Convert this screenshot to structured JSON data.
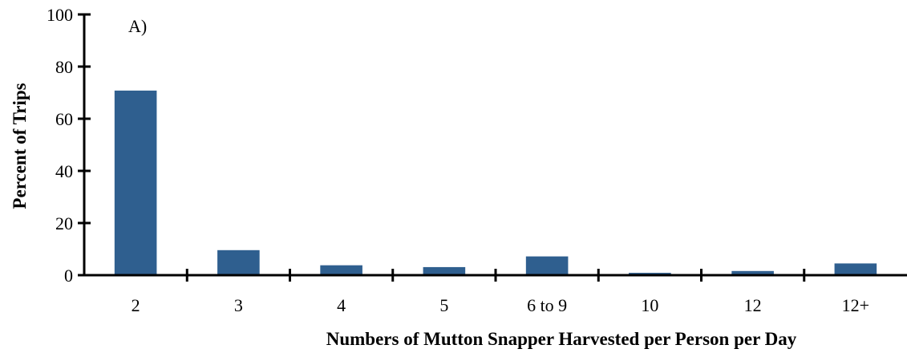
{
  "chart_data": {
    "type": "bar",
    "annotation": "A)",
    "x_label": "Numbers of Mutton Snapper Harvested per Person per Day",
    "y_label": "Percent of Trips",
    "categories": [
      "2",
      "3",
      "4",
      "5",
      "6 to 9",
      "10",
      "12",
      "12+"
    ],
    "values": [
      70.8,
      9.6,
      3.8,
      3.1,
      7.2,
      0.9,
      1.6,
      4.5
    ],
    "color": "#2f5f8f",
    "ylim": [
      0,
      100
    ],
    "yticks": [
      0,
      20,
      40,
      60,
      80,
      100
    ]
  }
}
